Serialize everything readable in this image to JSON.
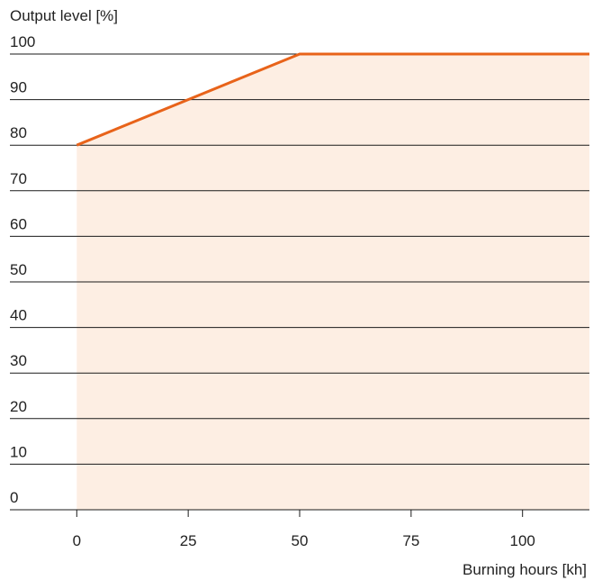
{
  "chart_data": {
    "type": "area",
    "ylabel": "Output level [%]",
    "xlabel": "Burning hours [kh]",
    "x_ticks": [
      0,
      25,
      50,
      75,
      100
    ],
    "y_ticks": [
      0,
      10,
      20,
      30,
      40,
      50,
      60,
      70,
      80,
      90,
      100
    ],
    "xlim": [
      -15,
      115
    ],
    "ylim": [
      0,
      100
    ],
    "grid": true,
    "series": [
      {
        "x": [
          0,
          50,
          115
        ],
        "y": [
          80,
          100,
          100
        ]
      }
    ],
    "colors": {
      "line": "#e8631a",
      "fill": "#fdeee3",
      "grid": "#1a1a1a",
      "text": "#222222"
    }
  }
}
